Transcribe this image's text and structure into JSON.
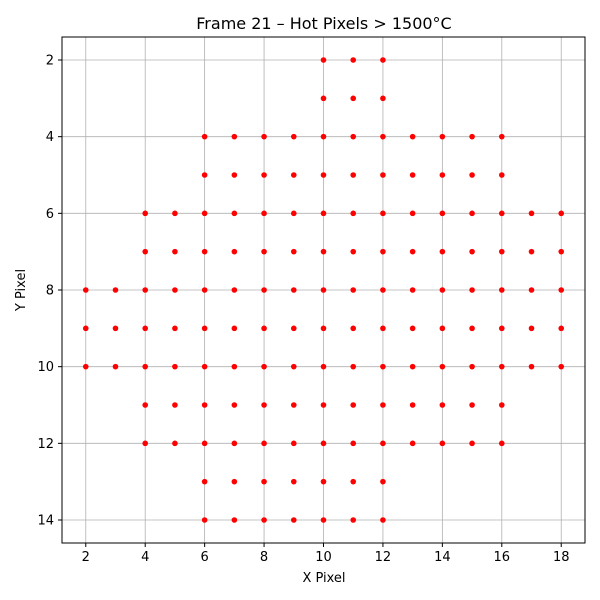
{
  "chart_data": {
    "type": "scatter",
    "title": "Frame 21 – Hot Pixels > 1500°C",
    "xlabel": "X Pixel",
    "ylabel": "Y Pixel",
    "xlim": [
      1.2,
      18.8
    ],
    "ylim": [
      14.6,
      1.4
    ],
    "y_inverted": true,
    "xticks": [
      2,
      4,
      6,
      8,
      10,
      12,
      14,
      16,
      18
    ],
    "yticks": [
      2,
      4,
      6,
      8,
      10,
      12,
      14
    ],
    "grid": true,
    "marker_color": "#ff0000",
    "rows": [
      {
        "y": 2,
        "x": [
          10,
          11,
          12
        ]
      },
      {
        "y": 3,
        "x": [
          10,
          11,
          12
        ]
      },
      {
        "y": 4,
        "x": [
          6,
          7,
          8,
          9,
          10,
          11,
          12,
          13,
          14,
          15,
          16
        ]
      },
      {
        "y": 5,
        "x": [
          6,
          7,
          8,
          9,
          10,
          11,
          12,
          13,
          14,
          15,
          16
        ]
      },
      {
        "y": 6,
        "x": [
          4,
          5,
          6,
          7,
          8,
          9,
          10,
          11,
          12,
          13,
          14,
          15,
          16,
          17,
          18
        ]
      },
      {
        "y": 7,
        "x": [
          4,
          5,
          6,
          7,
          8,
          9,
          10,
          11,
          12,
          13,
          14,
          15,
          16,
          17,
          18
        ]
      },
      {
        "y": 8,
        "x": [
          2,
          3,
          4,
          5,
          6,
          7,
          8,
          9,
          10,
          11,
          12,
          13,
          14,
          15,
          16,
          17,
          18
        ]
      },
      {
        "y": 9,
        "x": [
          2,
          3,
          4,
          5,
          6,
          7,
          8,
          9,
          10,
          11,
          12,
          13,
          14,
          15,
          16,
          17,
          18
        ]
      },
      {
        "y": 10,
        "x": [
          2,
          3,
          4,
          5,
          6,
          7,
          8,
          9,
          10,
          11,
          12,
          13,
          14,
          15,
          16,
          17,
          18
        ]
      },
      {
        "y": 11,
        "x": [
          4,
          5,
          6,
          7,
          8,
          9,
          10,
          11,
          12,
          13,
          14,
          15,
          16
        ]
      },
      {
        "y": 12,
        "x": [
          4,
          5,
          6,
          7,
          8,
          9,
          10,
          11,
          12,
          13,
          14,
          15,
          16
        ]
      },
      {
        "y": 13,
        "x": [
          6,
          7,
          8,
          9,
          10,
          11,
          12
        ]
      },
      {
        "y": 14,
        "x": [
          6,
          7,
          8,
          9,
          10,
          11,
          12
        ]
      }
    ]
  }
}
